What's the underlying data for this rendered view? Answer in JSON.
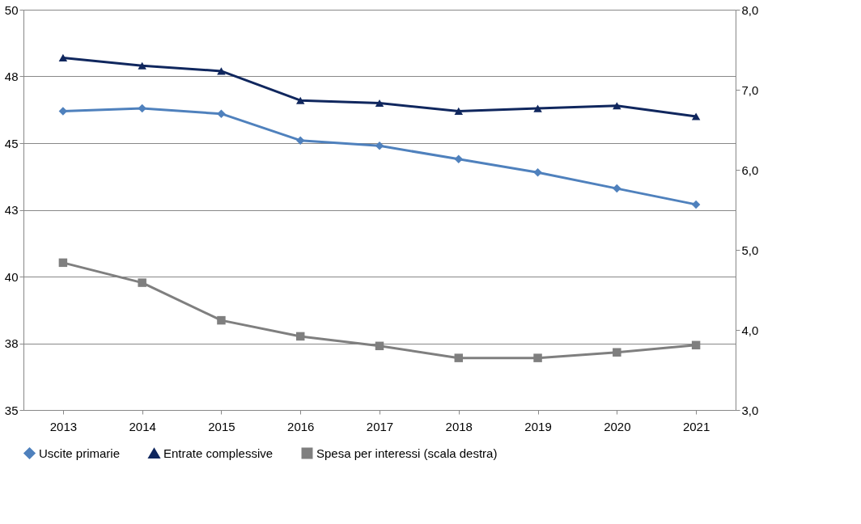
{
  "chart_data": {
    "type": "line",
    "categories": [
      "2013",
      "2014",
      "2015",
      "2016",
      "2017",
      "2018",
      "2019",
      "2020",
      "2021"
    ],
    "series": [
      {
        "name": "Uscite primarie",
        "color": "#4f81bd",
        "marker": "diamond",
        "values": [
          46.2,
          46.3,
          46.1,
          45.1,
          44.9,
          44.4,
          43.9,
          43.3,
          42.7
        ]
      },
      {
        "name": "Entrate complessive",
        "color": "#10275e",
        "marker": "triangle",
        "values": [
          48.2,
          47.9,
          47.7,
          46.6,
          46.5,
          46.2,
          46.3,
          46.4,
          46.0
        ]
      },
      {
        "name": "Spesa per interessi (scala destra)",
        "color": "#7f7f7f",
        "marker": "square",
        "axis": "y2",
        "values": [
          4.84,
          4.59,
          4.12,
          3.92,
          3.8,
          3.65,
          3.65,
          3.72,
          3.81
        ]
      }
    ],
    "ylim": [
      35,
      50
    ],
    "yticks": [
      35,
      {
        "value": 37.5,
        "label": "38"
      },
      40,
      {
        "value": 42.5,
        "label": "43"
      },
      45,
      {
        "value": 47.5,
        "label": "48"
      },
      50
    ],
    "y2lim": [
      3,
      8
    ],
    "y2ticks": [
      {
        "value": 3,
        "label": "3,0"
      },
      {
        "value": 4,
        "label": "4,0"
      },
      {
        "value": 5,
        "label": "5,0"
      },
      {
        "value": 6,
        "label": "6,0"
      },
      {
        "value": 7,
        "label": "7,0"
      },
      {
        "value": 8,
        "label": "8,0"
      }
    ],
    "grid": "y",
    "legend": "bottom",
    "line_style": "solid"
  }
}
